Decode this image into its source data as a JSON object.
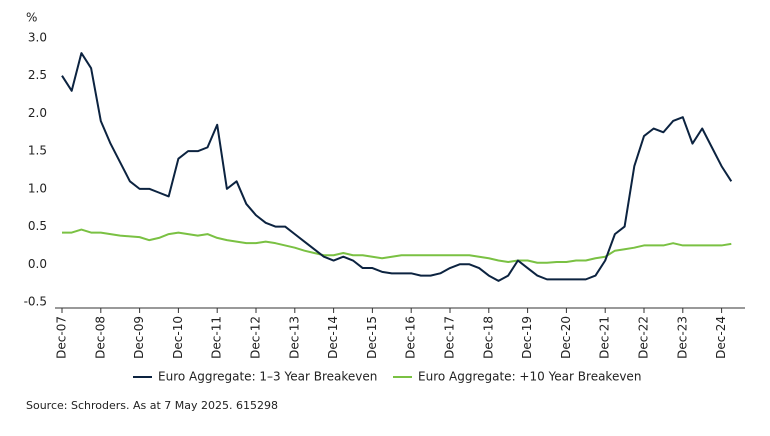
{
  "chart_data": {
    "type": "line",
    "y_unit": "%",
    "source": "Source: Schroders. As at 7 May 2025. 615298",
    "categories": [
      "Dec-07",
      null,
      null,
      null,
      "Dec-08",
      null,
      null,
      null,
      "Dec-09",
      null,
      null,
      null,
      "Dec-10",
      null,
      null,
      null,
      "Dec-11",
      null,
      null,
      null,
      "Dec-12",
      null,
      null,
      null,
      "Dec-13",
      null,
      null,
      null,
      "Dec-14",
      null,
      null,
      null,
      "Dec-15",
      null,
      null,
      null,
      "Dec-16",
      null,
      null,
      null,
      "Dec-17",
      null,
      null,
      null,
      "Dec-18",
      null,
      null,
      null,
      "Dec-19",
      null,
      null,
      null,
      "Dec-20",
      null,
      null,
      null,
      "Dec-21",
      null,
      null,
      null,
      "Dec-22",
      null,
      null,
      null,
      "Dec-23",
      null,
      null,
      null,
      "Dec-24",
      null
    ],
    "series": [
      {
        "name": "Euro Aggregate: 1–3 Year Breakeven",
        "color": "#0c2340",
        "values": [
          2.5,
          2.3,
          2.8,
          2.6,
          1.9,
          1.6,
          1.35,
          1.1,
          1.0,
          1.0,
          0.95,
          0.9,
          1.4,
          1.5,
          1.5,
          1.55,
          1.85,
          1.0,
          1.1,
          0.8,
          0.65,
          0.55,
          0.5,
          0.5,
          0.4,
          0.3,
          0.2,
          0.1,
          0.05,
          0.1,
          0.05,
          -0.05,
          -0.05,
          -0.1,
          -0.12,
          -0.12,
          -0.12,
          -0.15,
          -0.15,
          -0.12,
          -0.05,
          0.0,
          0.0,
          -0.05,
          -0.15,
          -0.22,
          -0.15,
          0.05,
          -0.05,
          -0.15,
          -0.2,
          -0.2,
          -0.2,
          -0.2,
          -0.2,
          -0.15,
          0.05,
          0.4,
          0.5,
          1.3,
          1.7,
          1.8,
          1.75,
          1.9,
          1.95,
          1.6,
          1.8,
          1.55,
          1.3,
          1.1
        ]
      },
      {
        "name": "Euro Aggregate: +10 Year Breakeven",
        "color": "#7ac143",
        "values": [
          0.42,
          0.42,
          0.46,
          0.42,
          0.42,
          0.4,
          0.38,
          0.37,
          0.36,
          0.32,
          0.35,
          0.4,
          0.42,
          0.4,
          0.38,
          0.4,
          0.35,
          0.32,
          0.3,
          0.28,
          0.28,
          0.3,
          0.28,
          0.25,
          0.22,
          0.18,
          0.15,
          0.12,
          0.12,
          0.15,
          0.12,
          0.12,
          0.1,
          0.08,
          0.1,
          0.12,
          0.12,
          0.12,
          0.12,
          0.12,
          0.12,
          0.12,
          0.12,
          0.1,
          0.08,
          0.05,
          0.03,
          0.05,
          0.05,
          0.02,
          0.02,
          0.03,
          0.03,
          0.05,
          0.05,
          0.08,
          0.1,
          0.18,
          0.2,
          0.22,
          0.25,
          0.25,
          0.25,
          0.28,
          0.25,
          0.25,
          0.25,
          0.25,
          0.25,
          0.27
        ]
      }
    ],
    "ylim": [
      -0.5,
      3.0
    ],
    "yticks": [
      -0.5,
      {
        "value": 0,
        "label": "0.0"
      },
      0.5,
      {
        "value": 1,
        "label": "1.0"
      },
      1.5,
      {
        "value": 2,
        "label": "2.0"
      },
      2.5,
      {
        "value": 3,
        "label": "3.0"
      }
    ],
    "grid": false,
    "legend": "bottom"
  }
}
